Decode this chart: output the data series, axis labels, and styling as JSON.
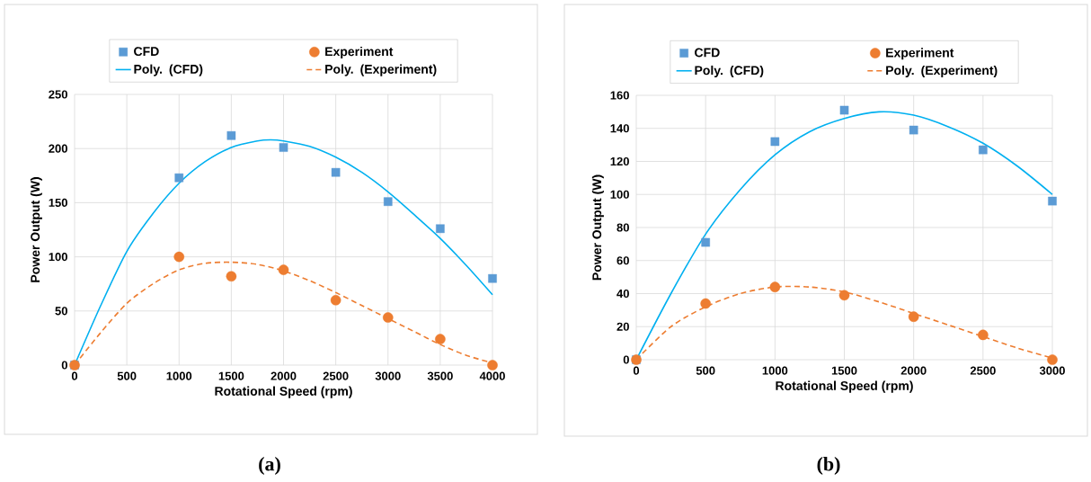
{
  "chart_data": [
    {
      "type": "scatter",
      "xlabel": "Rotational Speed (rpm)",
      "ylabel": "Power Output (W)",
      "xlim": [
        0,
        4000
      ],
      "ylim": [
        0,
        250
      ],
      "xticks": [
        0,
        500,
        1000,
        1500,
        2000,
        2500,
        3000,
        3500,
        4000
      ],
      "yticks": [
        0,
        50,
        100,
        150,
        200,
        250
      ],
      "grid": true,
      "legend": "top",
      "annotations": [
        "(a)"
      ],
      "series": [
        {
          "name": "CFD",
          "marker": "square",
          "color": "#5b9bd5",
          "x": [
            0,
            1000,
            1500,
            2000,
            2500,
            3000,
            3500,
            4000
          ],
          "values": [
            0,
            173,
            212,
            201,
            178,
            151,
            126,
            80
          ]
        },
        {
          "name": "Experiment",
          "marker": "circle",
          "color": "#ed7d31",
          "x": [
            0,
            1000,
            1500,
            2000,
            2500,
            3000,
            3500,
            4000
          ],
          "values": [
            0,
            100,
            82,
            88,
            60,
            44,
            24,
            0
          ]
        },
        {
          "name": "Poly. (CFD)",
          "type": "line",
          "marker": "none",
          "line_style": "solid",
          "color": "#00b0f0",
          "x": [
            0,
            250,
            500,
            750,
            1000,
            1250,
            1500,
            1750,
            1875,
            2000,
            2250,
            2500,
            2750,
            3000,
            3250,
            3500,
            3750,
            4000
          ],
          "values": [
            0,
            55,
            105,
            140,
            168,
            188,
            201,
            207,
            208,
            207,
            202,
            192,
            178,
            160,
            139,
            117,
            92,
            65
          ]
        },
        {
          "name": "Poly. (Experiment)",
          "type": "line",
          "marker": "none",
          "line_style": "dashed",
          "color": "#ed7d31",
          "x": [
            0,
            250,
            500,
            750,
            1000,
            1250,
            1500,
            1750,
            2000,
            2250,
            2500,
            2750,
            3000,
            3250,
            3500,
            3750,
            4000
          ],
          "values": [
            0,
            30,
            57,
            75,
            88,
            94,
            95,
            93,
            87,
            78,
            67,
            55,
            43,
            31,
            19,
            9,
            2
          ]
        }
      ]
    },
    {
      "type": "scatter",
      "xlabel": "Rotational Speed (rpm)",
      "ylabel": "Power Output (W)",
      "xlim": [
        0,
        3000
      ],
      "ylim": [
        0,
        160
      ],
      "xticks": [
        0,
        500,
        1000,
        1500,
        2000,
        2500,
        3000
      ],
      "yticks": [
        0,
        20,
        40,
        60,
        80,
        100,
        120,
        140,
        160
      ],
      "grid": true,
      "legend": "top",
      "annotations": [
        "(b)"
      ],
      "series": [
        {
          "name": "CFD",
          "marker": "square",
          "color": "#5b9bd5",
          "x": [
            0,
            500,
            1000,
            1500,
            2000,
            2500,
            3000
          ],
          "values": [
            0,
            71,
            132,
            151,
            139,
            127,
            96
          ]
        },
        {
          "name": "Experiment",
          "marker": "circle",
          "color": "#ed7d31",
          "x": [
            0,
            500,
            1000,
            1500,
            2000,
            2500,
            3000
          ],
          "values": [
            0,
            34,
            44,
            39,
            26,
            15,
            0
          ]
        },
        {
          "name": "Poly. (CFD)",
          "type": "line",
          "marker": "none",
          "line_style": "solid",
          "color": "#00b0f0",
          "x": [
            0,
            250,
            500,
            750,
            1000,
            1250,
            1500,
            1750,
            2000,
            2250,
            2500,
            2750,
            3000
          ],
          "values": [
            0,
            40,
            76,
            103,
            124,
            138,
            146,
            150,
            148,
            141,
            131,
            117,
            100
          ]
        },
        {
          "name": "Poly. (Experiment)",
          "type": "line",
          "marker": "none",
          "line_style": "dashed",
          "color": "#ed7d31",
          "x": [
            0,
            250,
            500,
            750,
            1000,
            1250,
            1500,
            1750,
            2000,
            2250,
            2500,
            2750,
            3000
          ],
          "values": [
            0,
            20,
            32,
            40,
            44,
            44,
            41,
            35,
            28,
            21,
            14,
            7,
            1
          ]
        }
      ]
    }
  ]
}
